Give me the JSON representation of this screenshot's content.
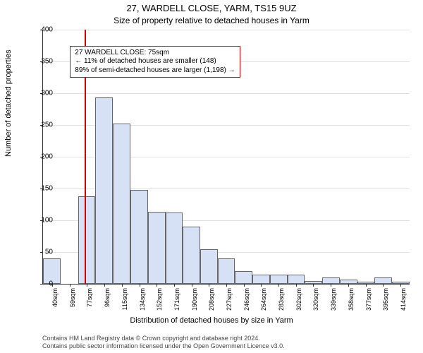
{
  "header": {
    "title_main": "27, WARDELL CLOSE, YARM, TS15 9UZ",
    "title_sub": "Size of property relative to detached houses in Yarm"
  },
  "axes": {
    "y_label": "Number of detached properties",
    "x_label": "Distribution of detached houses by size in Yarm",
    "ylim": [
      0,
      400
    ],
    "ytick_step": 50,
    "y_ticks": [
      0,
      50,
      100,
      150,
      200,
      250,
      300,
      350,
      400
    ],
    "label_fontsize": 11,
    "tick_fontsize": 10
  },
  "chart": {
    "type": "histogram",
    "bar_fill": "#d6e1f5",
    "bar_border": "#666666",
    "grid_color": "#e0e0e0",
    "background_color": "#ffffff",
    "x_min": 30,
    "x_max": 424,
    "x_tick_positions": [
      40,
      59,
      77,
      96,
      115,
      134,
      152,
      171,
      190,
      208,
      227,
      246,
      264,
      283,
      302,
      320,
      339,
      358,
      377,
      395,
      414
    ],
    "x_tick_labels": [
      "40sqm",
      "59sqm",
      "77sqm",
      "96sqm",
      "115sqm",
      "134sqm",
      "152sqm",
      "171sqm",
      "190sqm",
      "208sqm",
      "227sqm",
      "246sqm",
      "264sqm",
      "283sqm",
      "302sqm",
      "320sqm",
      "339sqm",
      "358sqm",
      "377sqm",
      "395sqm",
      "414sqm"
    ],
    "bars": [
      {
        "x0": 30,
        "x1": 49,
        "value": 40
      },
      {
        "x0": 49,
        "x1": 68,
        "value": 0
      },
      {
        "x0": 68,
        "x1": 86,
        "value": 138
      },
      {
        "x0": 86,
        "x1": 105,
        "value": 293
      },
      {
        "x0": 105,
        "x1": 124,
        "value": 252
      },
      {
        "x0": 124,
        "x1": 143,
        "value": 148
      },
      {
        "x0": 143,
        "x1": 162,
        "value": 113
      },
      {
        "x0": 162,
        "x1": 180,
        "value": 112
      },
      {
        "x0": 180,
        "x1": 199,
        "value": 90
      },
      {
        "x0": 199,
        "x1": 218,
        "value": 55
      },
      {
        "x0": 218,
        "x1": 236,
        "value": 40
      },
      {
        "x0": 236,
        "x1": 255,
        "value": 20
      },
      {
        "x0": 255,
        "x1": 274,
        "value": 15
      },
      {
        "x0": 274,
        "x1": 293,
        "value": 15
      },
      {
        "x0": 293,
        "x1": 311,
        "value": 15
      },
      {
        "x0": 311,
        "x1": 330,
        "value": 5
      },
      {
        "x0": 330,
        "x1": 349,
        "value": 10
      },
      {
        "x0": 349,
        "x1": 368,
        "value": 7
      },
      {
        "x0": 368,
        "x1": 386,
        "value": 3
      },
      {
        "x0": 386,
        "x1": 405,
        "value": 10
      },
      {
        "x0": 405,
        "x1": 424,
        "value": 3
      }
    ]
  },
  "marker": {
    "position_sqm": 75,
    "color": "#d40000"
  },
  "annotation": {
    "line1": "27 WARDELL CLOSE: 75sqm",
    "line2": "← 11% of detached houses are smaller (148)",
    "line3": "89% of semi-detached houses are larger (1,198) →",
    "border_color": "#d40000",
    "background": "#ffffff",
    "fontsize": 10,
    "left_sqm": 59,
    "top_value": 375
  },
  "footer": {
    "line1": "Contains HM Land Registry data © Crown copyright and database right 2024.",
    "line2": "Contains public sector information licensed under the Open Government Licence v3.0."
  }
}
